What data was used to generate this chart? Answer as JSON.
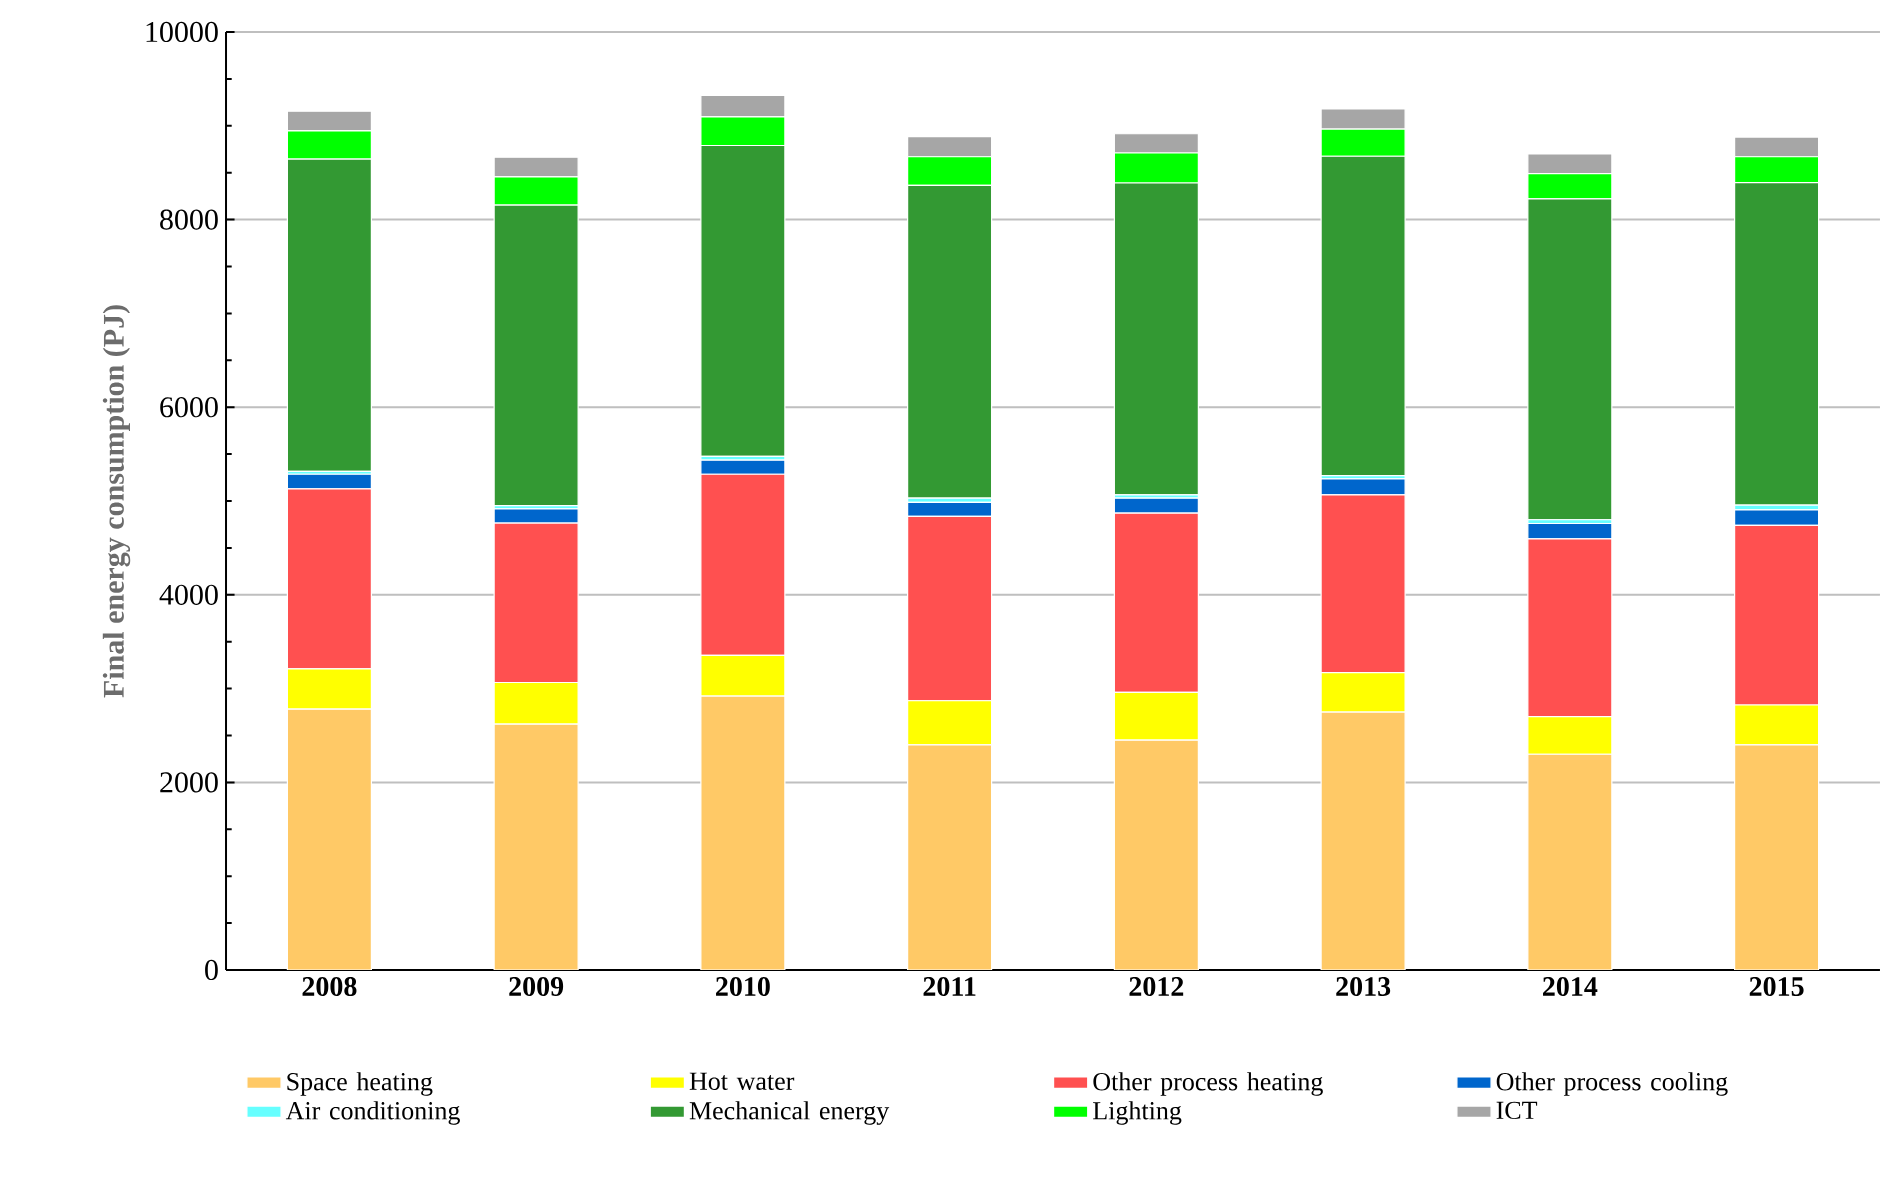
{
  "chart_data": {
    "type": "bar",
    "stacked": true,
    "ylabel": "Final energy consumption (PJ)",
    "categories": [
      "2008",
      "2009",
      "2010",
      "2011",
      "2012",
      "2013",
      "2014",
      "2015"
    ],
    "series": [
      {
        "name": "Space heating",
        "color": "#ffc966",
        "values": [
          2780,
          2620,
          2920,
          2400,
          2450,
          2750,
          2300,
          2400
        ]
      },
      {
        "name": "Hot water",
        "color": "#ffff00",
        "values": [
          430,
          445,
          435,
          470,
          510,
          420,
          400,
          425
        ]
      },
      {
        "name": "Other process heating",
        "color": "#ff5050",
        "values": [
          1920,
          1700,
          1930,
          1965,
          1910,
          1895,
          1895,
          1915
        ]
      },
      {
        "name": "Other process cooling",
        "color": "#0066cc",
        "values": [
          155,
          150,
          150,
          150,
          160,
          170,
          165,
          165
        ]
      },
      {
        "name": "Air conditioning",
        "color": "#66ffff",
        "values": [
          30,
          35,
          40,
          45,
          35,
          35,
          40,
          50
        ]
      },
      {
        "name": "Mechanical energy",
        "color": "#339933",
        "values": [
          3330,
          3205,
          3315,
          3335,
          3325,
          3405,
          3420,
          3440
        ]
      },
      {
        "name": "Lighting",
        "color": "#00ff00",
        "values": [
          300,
          300,
          305,
          305,
          320,
          290,
          270,
          275
        ]
      },
      {
        "name": "ICT",
        "color": "#a6a6a6",
        "values": [
          210,
          210,
          230,
          215,
          205,
          215,
          210,
          210
        ]
      }
    ],
    "ylim": [
      0,
      10000
    ],
    "yticks": [
      0,
      2000,
      4000,
      6000,
      8000,
      10000
    ],
    "grid": "y",
    "legend": "bottom"
  }
}
